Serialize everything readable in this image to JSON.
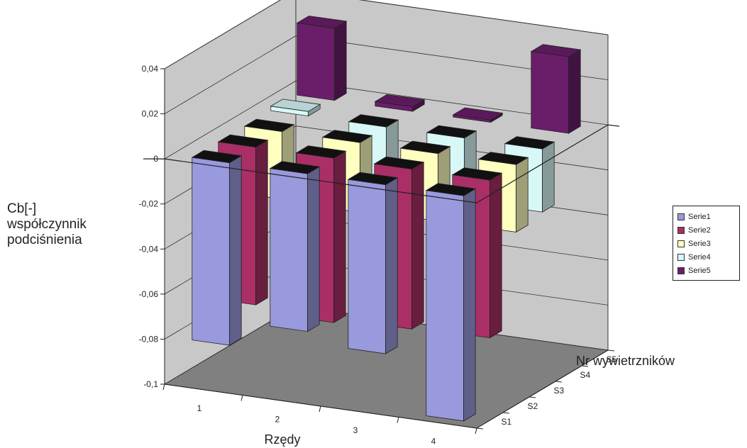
{
  "chart_data": {
    "type": "bar",
    "title": "",
    "ylabel": [
      "Cb[-]",
      "współczynnik",
      "podciśnienia"
    ],
    "xlabel": "Rzędy",
    "zlabel": "Nr wywietrzników",
    "categories": [
      "1",
      "2",
      "3",
      "4"
    ],
    "depth_categories": [
      "S1",
      "S2",
      "S3",
      "S4",
      "S5"
    ],
    "ylim": [
      -0.1,
      0.04
    ],
    "yticks": [
      0.04,
      0.02,
      0,
      -0.02,
      -0.04,
      -0.06,
      -0.08,
      -0.1
    ],
    "ytick_labels": [
      "0,04",
      "0,02",
      "0",
      "-0,02",
      "-0,04",
      "-0,06",
      "-0,08",
      "-0,1"
    ],
    "grid": true,
    "legend_position": "right",
    "series": [
      {
        "name": "Serie1",
        "color": "#9999dd",
        "values": [
          -0.081,
          -0.07,
          -0.075,
          -0.1
        ]
      },
      {
        "name": "Serie2",
        "color": "#aa2f66",
        "values": [
          -0.07,
          -0.073,
          -0.071,
          -0.07
        ]
      },
      {
        "name": "Serie3",
        "color": "#ffffc0",
        "values": [
          -0.03,
          -0.031,
          -0.03,
          -0.03
        ]
      },
      {
        "name": "Serie4",
        "color": "#d8f8f8",
        "values": [
          0.002,
          -0.028,
          -0.028,
          -0.028
        ]
      },
      {
        "name": "Serie5",
        "color": "#6a1e6a",
        "values": [
          0.032,
          0.002,
          0.001,
          0.034
        ]
      }
    ]
  }
}
